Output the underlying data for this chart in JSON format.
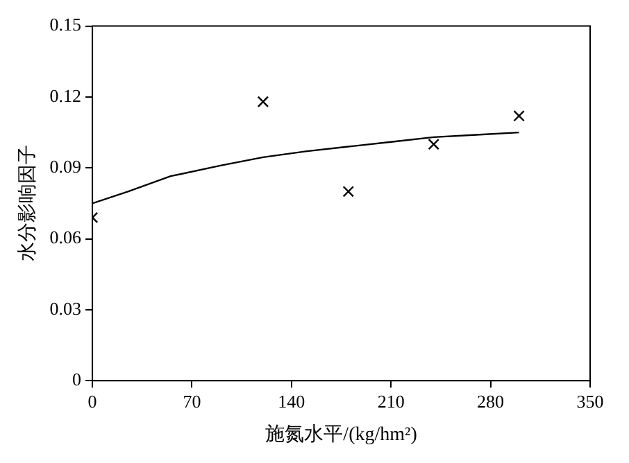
{
  "chart_data": {
    "type": "scatter",
    "xlabel": "施氮水平/(kg/hm²)",
    "ylabel": "水分影响因子",
    "xlim": [
      0,
      350
    ],
    "xticks": [
      0,
      70,
      140,
      210,
      280,
      350
    ],
    "ylim": [
      0,
      0.15
    ],
    "yticks": [
      0,
      0.03,
      0.06,
      0.09,
      0.12,
      0.15
    ],
    "grid": false,
    "legend": false,
    "series": [
      {
        "marker": "cross",
        "color": "#000000",
        "x": [
          0,
          120,
          180,
          240,
          300
        ],
        "values": [
          0.069,
          0.118,
          0.08,
          0.1,
          0.112
        ]
      },
      {
        "type": "line",
        "marker": "none",
        "line_style": "solid",
        "color": "#000000",
        "x": [
          0,
          25,
          55,
          90,
          120,
          150,
          180,
          210,
          240,
          270,
          300
        ],
        "values": [
          0.075,
          0.08,
          0.0865,
          0.091,
          0.0945,
          0.097,
          0.099,
          0.101,
          0.103,
          0.104,
          0.105
        ]
      }
    ]
  }
}
